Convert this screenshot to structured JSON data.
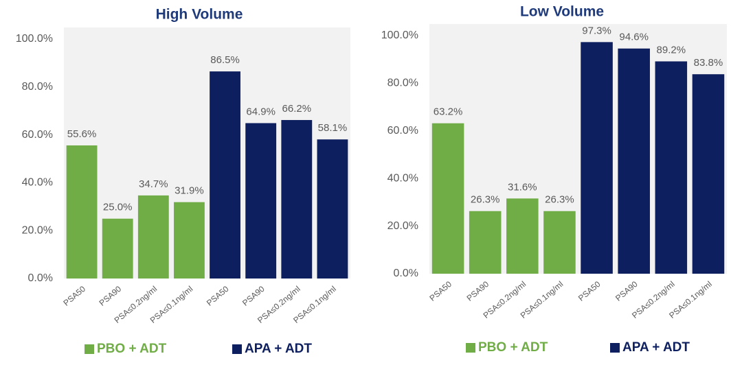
{
  "chart_data": [
    {
      "type": "bar",
      "title": "High Volume",
      "categories": [
        "PSA50",
        "PSA90",
        "PSA≤0.2ng/ml",
        "PSA≤0.1ng/ml",
        "PSA50",
        "PSA90",
        "PSA≤0.2ng/ml",
        "PSA≤0.1ng/ml"
      ],
      "series": [
        {
          "name": "PBO + ADT",
          "color": "#70ad47",
          "values": [
            55.6,
            25.0,
            34.7,
            31.9,
            null,
            null,
            null,
            null
          ],
          "value_labels": [
            "55.6%",
            "25.0%",
            "34.7%",
            "31.9%",
            null,
            null,
            null,
            null
          ]
        },
        {
          "name": "APA + ADT",
          "color": "#0d1f5e",
          "values": [
            null,
            null,
            null,
            null,
            86.5,
            64.9,
            66.2,
            58.1
          ],
          "value_labels": [
            null,
            null,
            null,
            null,
            "86.5%",
            "64.9%",
            "66.2%",
            "58.1%"
          ]
        }
      ],
      "ylim": [
        0,
        100
      ],
      "yticks": [
        {
          "value": 0,
          "label": "0.0%"
        },
        {
          "value": 20,
          "label": "20.0%"
        },
        {
          "value": 40,
          "label": "40.0%"
        },
        {
          "value": 60,
          "label": "60.0%"
        },
        {
          "value": 80,
          "label": "80.0%"
        },
        {
          "value": 100,
          "label": "100.0%"
        }
      ],
      "grid": false,
      "legend": "bottom"
    },
    {
      "type": "bar",
      "title": "Low Volume",
      "categories": [
        "PSA50",
        "PSA90",
        "PSA≤0.2ng/ml",
        "PSA≤0.1ng/ml",
        "PSA50",
        "PSA90",
        "PSA≤0.2ng/ml",
        "PSA≤0.1ng/ml"
      ],
      "series": [
        {
          "name": "PBO + ADT",
          "color": "#70ad47",
          "values": [
            63.2,
            26.3,
            31.6,
            26.3,
            null,
            null,
            null,
            null
          ],
          "value_labels": [
            "63.2%",
            "26.3%",
            "31.6%",
            "26.3%",
            null,
            null,
            null,
            null
          ]
        },
        {
          "name": "APA + ADT",
          "color": "#0d1f5e",
          "values": [
            null,
            null,
            null,
            null,
            97.3,
            94.6,
            89.2,
            83.8
          ],
          "value_labels": [
            null,
            null,
            null,
            null,
            "97.3%",
            "94.6%",
            "89.2%",
            "83.8%"
          ]
        }
      ],
      "ylim": [
        0,
        100
      ],
      "yticks": [
        {
          "value": 0,
          "label": "0.0%"
        },
        {
          "value": 20,
          "label": "20.0%"
        },
        {
          "value": 40,
          "label": "40.0%"
        },
        {
          "value": 60,
          "label": "60.0%"
        },
        {
          "value": 80,
          "label": "80.0%"
        },
        {
          "value": 100,
          "label": "100.0%"
        }
      ],
      "grid": false,
      "legend": "bottom"
    }
  ]
}
